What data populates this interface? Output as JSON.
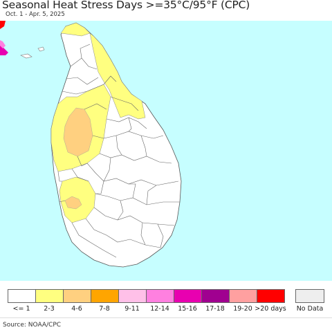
{
  "title": "Seasonal Heat Stress Days >=35°C/95°F (CPC)",
  "subtitle": "Oct. 1 - Apr. 5, 2025",
  "source": "Source: NOAA/CPC",
  "colors": {
    "ocean": "#c6feff",
    "land_default": "#ffffff",
    "border": "#555555"
  },
  "legend": {
    "items": [
      {
        "label": "<= 1",
        "color": "#ffffff"
      },
      {
        "label": "2-3",
        "color": "#ffff80"
      },
      {
        "label": "4-6",
        "color": "#ffd080"
      },
      {
        "label": "7-8",
        "color": "#ffa500"
      },
      {
        "label": "9-11",
        "color": "#ffc0e8"
      },
      {
        "label": "12-14",
        "color": "#ff80e0"
      },
      {
        "label": "15-16",
        "color": "#e800b0"
      },
      {
        "label": "17-18",
        "color": "#a00090"
      },
      {
        "label": "19-20",
        "color": "#ffa0a0"
      },
      {
        "label": ">20 days",
        "color": "#ff0000"
      }
    ],
    "no_data": {
      "label": "No Data",
      "color": "#eeeeee"
    }
  }
}
